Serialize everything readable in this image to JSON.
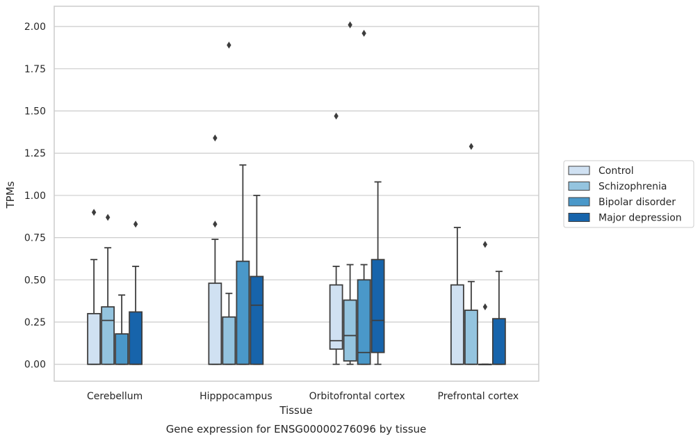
{
  "chart_data": {
    "type": "boxplot",
    "caption": "Gene expression for ENSG00000276096 by tissue",
    "xlabel": "Tissue",
    "ylabel": "TPMs",
    "ylim": [
      -0.1,
      2.12
    ],
    "yticks": [
      0.0,
      0.25,
      0.5,
      0.75,
      1.0,
      1.25,
      1.5,
      1.75,
      2.0
    ],
    "ytick_labels": [
      "0.00",
      "0.25",
      "0.50",
      "0.75",
      "1.00",
      "1.25",
      "1.50",
      "1.75",
      "2.00"
    ],
    "grid": "horizontal",
    "legend_position": "right",
    "categories": [
      "Cerebellum",
      "Hipppocampus",
      "Orbitofrontal cortex",
      "Prefrontal cortex"
    ],
    "series": [
      {
        "name": "Control",
        "color": "#d0e1f2",
        "boxes": [
          {
            "whislo": 0.0,
            "q1": 0.0,
            "med": 0.0,
            "q3": 0.3,
            "whishi": 0.62,
            "fliers": [
              0.9
            ]
          },
          {
            "whislo": 0.0,
            "q1": 0.0,
            "med": 0.0,
            "q3": 0.48,
            "whishi": 0.74,
            "fliers": [
              0.83,
              1.34
            ]
          },
          {
            "whislo": 0.0,
            "q1": 0.09,
            "med": 0.14,
            "q3": 0.47,
            "whishi": 0.58,
            "fliers": [
              1.47
            ]
          },
          {
            "whislo": 0.0,
            "q1": 0.0,
            "med": 0.0,
            "q3": 0.47,
            "whishi": 0.81,
            "fliers": []
          }
        ]
      },
      {
        "name": "Schizophrenia",
        "color": "#94c4df",
        "boxes": [
          {
            "whislo": 0.0,
            "q1": 0.0,
            "med": 0.26,
            "q3": 0.34,
            "whishi": 0.69,
            "fliers": [
              0.87
            ]
          },
          {
            "whislo": 0.0,
            "q1": 0.0,
            "med": 0.0,
            "q3": 0.28,
            "whishi": 0.42,
            "fliers": [
              1.89
            ]
          },
          {
            "whislo": 0.0,
            "q1": 0.02,
            "med": 0.17,
            "q3": 0.38,
            "whishi": 0.59,
            "fliers": [
              2.01
            ]
          },
          {
            "whislo": 0.0,
            "q1": 0.0,
            "med": 0.0,
            "q3": 0.32,
            "whishi": 0.49,
            "fliers": [
              1.29
            ]
          }
        ]
      },
      {
        "name": "Bipolar disorder",
        "color": "#4a98c9",
        "boxes": [
          {
            "whislo": 0.0,
            "q1": 0.0,
            "med": 0.0,
            "q3": 0.18,
            "whishi": 0.41,
            "fliers": []
          },
          {
            "whislo": 0.0,
            "q1": 0.0,
            "med": 0.0,
            "q3": 0.61,
            "whishi": 1.18,
            "fliers": []
          },
          {
            "whislo": 0.0,
            "q1": 0.0,
            "med": 0.07,
            "q3": 0.5,
            "whishi": 0.59,
            "fliers": [
              1.96
            ]
          },
          {
            "whislo": 0.0,
            "q1": 0.0,
            "med": 0.0,
            "q3": 0.0,
            "whishi": 0.0,
            "fliers": [
              0.34,
              0.71
            ]
          }
        ]
      },
      {
        "name": "Major depression",
        "color": "#1764ab",
        "boxes": [
          {
            "whislo": 0.0,
            "q1": 0.0,
            "med": 0.0,
            "q3": 0.31,
            "whishi": 0.58,
            "fliers": [
              0.83
            ]
          },
          {
            "whislo": 0.0,
            "q1": 0.0,
            "med": 0.35,
            "q3": 0.52,
            "whishi": 1.0,
            "fliers": []
          },
          {
            "whislo": 0.0,
            "q1": 0.07,
            "med": 0.26,
            "q3": 0.62,
            "whishi": 1.08,
            "fliers": []
          },
          {
            "whislo": 0.0,
            "q1": 0.0,
            "med": 0.0,
            "q3": 0.27,
            "whishi": 0.55,
            "fliers": []
          }
        ]
      }
    ]
  }
}
